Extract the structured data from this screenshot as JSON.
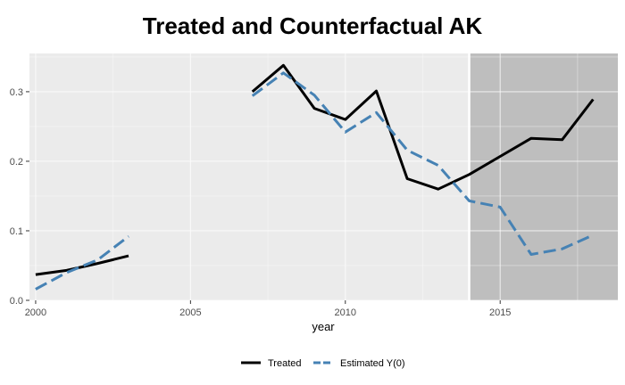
{
  "chart_data": {
    "type": "line",
    "title": "Treated and Counterfactual AK",
    "xlabel": "year",
    "ylabel": "",
    "xlim": [
      1999.8,
      2018.8
    ],
    "ylim": [
      0,
      0.355
    ],
    "x_ticks": [
      2000,
      2005,
      2010,
      2015
    ],
    "y_ticks": [
      0.0,
      0.1,
      0.2,
      0.3
    ],
    "x_tick_labels": [
      "2000",
      "2005",
      "2010",
      "2015"
    ],
    "y_tick_labels": [
      "0.0",
      "0.1",
      "0.2",
      "0.3"
    ],
    "grid": true,
    "treatment_start": 2014,
    "shaded_region": [
      2014,
      2018.8
    ],
    "legend_position": "bottom",
    "series": [
      {
        "name": "Treated",
        "color": "#000000",
        "linetype": "solid",
        "segments": [
          [
            [
              2000,
              0.037
            ],
            [
              2001,
              0.043
            ],
            [
              2002,
              0.053
            ],
            [
              2003,
              0.064
            ]
          ],
          [
            [
              2007,
              0.3
            ],
            [
              2008,
              0.338
            ],
            [
              2009,
              0.276
            ],
            [
              2010,
              0.26
            ],
            [
              2011,
              0.301
            ],
            [
              2012,
              0.175
            ],
            [
              2013,
              0.16
            ],
            [
              2014,
              0.181
            ],
            [
              2015,
              0.207
            ],
            [
              2016,
              0.233
            ],
            [
              2017,
              0.231
            ],
            [
              2018,
              0.289
            ]
          ]
        ]
      },
      {
        "name": "Estimated Y(0)",
        "color": "#4682b4",
        "linetype": "dashed",
        "segments": [
          [
            [
              2000,
              0.016
            ],
            [
              2001,
              0.04
            ],
            [
              2002,
              0.058
            ],
            [
              2003,
              0.092
            ]
          ],
          [
            [
              2007,
              0.294
            ],
            [
              2008,
              0.327
            ],
            [
              2009,
              0.295
            ],
            [
              2010,
              0.242
            ],
            [
              2011,
              0.27
            ],
            [
              2012,
              0.216
            ],
            [
              2013,
              0.194
            ],
            [
              2014,
              0.143
            ],
            [
              2015,
              0.134
            ],
            [
              2016,
              0.066
            ],
            [
              2017,
              0.074
            ],
            [
              2018,
              0.094
            ]
          ]
        ]
      }
    ]
  }
}
